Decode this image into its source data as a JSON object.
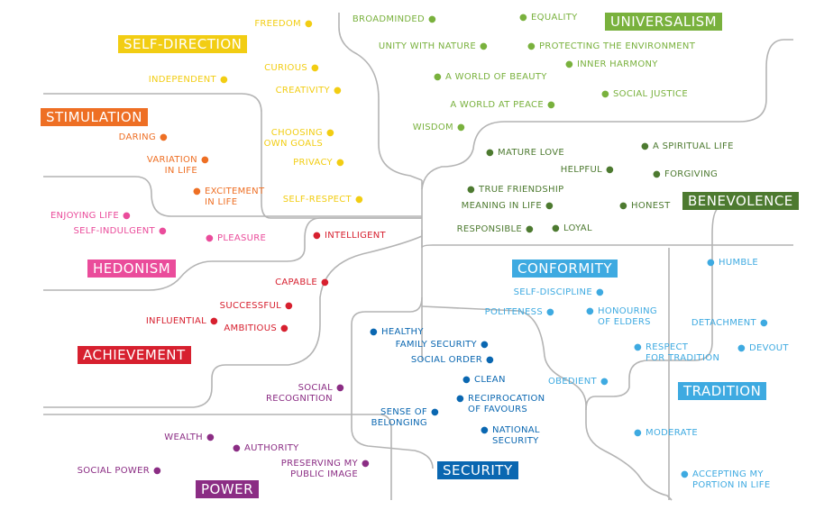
{
  "colors": {
    "self_direction": "#f2cd13",
    "stimulation": "#ee6f24",
    "hedonism": "#ea4c9b",
    "achievement": "#d7202f",
    "power": "#8b2d84",
    "security": "#0a67b1",
    "conformity": "#3eaae1",
    "tradition": "#3eaae1",
    "benevolence": "#4d7a30",
    "universalism": "#79b13d",
    "lines": "#b4b4b4"
  },
  "categories": [
    {
      "id": "self_direction",
      "label": "SELF-DIRECTION"
    },
    {
      "id": "stimulation",
      "label": "STIMULATION"
    },
    {
      "id": "hedonism",
      "label": "HEDONISM"
    },
    {
      "id": "achievement",
      "label": "ACHIEVEMENT"
    },
    {
      "id": "power",
      "label": "POWER"
    },
    {
      "id": "security",
      "label": "SECURITY"
    },
    {
      "id": "conformity",
      "label": "CONFORMITY"
    },
    {
      "id": "tradition",
      "label": "TRADITION"
    },
    {
      "id": "benevolence",
      "label": "BENEVOLENCE"
    },
    {
      "id": "universalism",
      "label": "UNIVERSALISM"
    }
  ],
  "values": {
    "self_direction": [
      "FREEDOM",
      "CURIOUS",
      "INDEPENDENT",
      "CREATIVITY",
      "CHOOSING\nOWN GOALS",
      "PRIVACY",
      "SELF-RESPECT"
    ],
    "stimulation": [
      "DARING",
      "VARIATION\nIN LIFE",
      "EXCITEMENT\nIN LIFE"
    ],
    "hedonism": [
      "ENJOYING LIFE",
      "SELF-INDULGENT",
      "PLEASURE"
    ],
    "achievement": [
      "INTELLIGENT",
      "CAPABLE",
      "SUCCESSFUL",
      "INFLUENTIAL",
      "AMBITIOUS"
    ],
    "power": [
      "SOCIAL\nRECOGNITION",
      "WEALTH",
      "AUTHORITY",
      "PRESERVING MY\nPUBLIC IMAGE",
      "SOCIAL POWER"
    ],
    "security": [
      "HEALTHY",
      "FAMILY SECURITY",
      "SOCIAL ORDER",
      "CLEAN",
      "RECIPROCATION\nOF FAVOURS",
      "SENSE OF\nBELONGING",
      "NATIONAL\nSECURITY"
    ],
    "conformity": [
      "SELF-DISCIPLINE",
      "POLITENESS",
      "HONOURING\nOF ELDERS",
      "OBEDIENT"
    ],
    "tradition": [
      "HUMBLE",
      "DETACHMENT",
      "RESPECT\nFOR TRADITION",
      "DEVOUT",
      "MODERATE",
      "ACCEPTING MY\nPORTION IN LIFE"
    ],
    "benevolence": [
      "MATURE LOVE",
      "A SPIRITUAL LIFE",
      "HELPFUL",
      "FORGIVING",
      "TRUE FRIENDSHIP",
      "MEANING IN LIFE",
      "HONEST",
      "RESPONSIBLE",
      "LOYAL"
    ],
    "universalism": [
      "BROADMINDED",
      "EQUALITY",
      "UNITY WITH NATURE",
      "PROTECTING THE ENVIRONMENT",
      "INNER HARMONY",
      "A WORLD OF BEAUTY",
      "SOCIAL JUSTICE",
      "A WORLD AT PEACE",
      "WISDOM"
    ]
  }
}
